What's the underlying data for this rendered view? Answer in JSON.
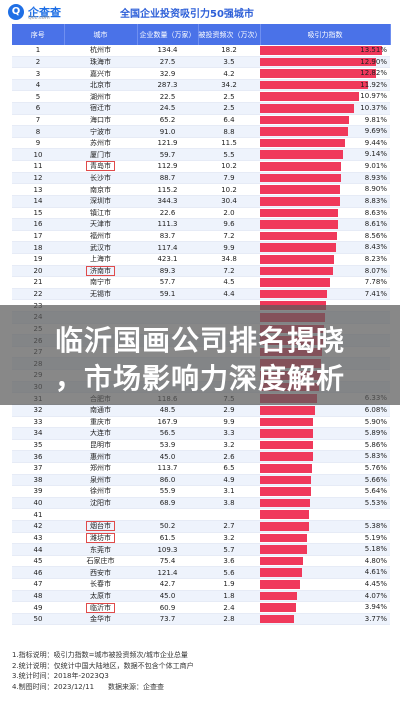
{
  "brand": {
    "name": "企查查",
    "sub": "Qcc.com"
  },
  "title": "全国企业投资吸引力50强城市",
  "columns": [
    "序号",
    "城市",
    "企业数量（万家）",
    "被投资频次（万次）",
    "吸引力指数"
  ],
  "rows": [
    {
      "rank": "1",
      "city": "杭州市",
      "count": "134.4",
      "freq": "18.2",
      "index": "13.51%",
      "value": 13.51,
      "boxed": false
    },
    {
      "rank": "2",
      "city": "珠海市",
      "count": "27.5",
      "freq": "3.5",
      "index": "12.90%",
      "value": 12.9,
      "boxed": false
    },
    {
      "rank": "3",
      "city": "嘉兴市",
      "count": "32.9",
      "freq": "4.2",
      "index": "12.82%",
      "value": 12.82,
      "boxed": false
    },
    {
      "rank": "4",
      "city": "北京市",
      "count": "287.3",
      "freq": "34.2",
      "index": "11.92%",
      "value": 11.92,
      "boxed": false
    },
    {
      "rank": "5",
      "city": "湖州市",
      "count": "22.5",
      "freq": "2.5",
      "index": "10.97%",
      "value": 10.97,
      "boxed": false
    },
    {
      "rank": "6",
      "city": "宿迁市",
      "count": "24.5",
      "freq": "2.5",
      "index": "10.37%",
      "value": 10.37,
      "boxed": false
    },
    {
      "rank": "7",
      "city": "海口市",
      "count": "65.2",
      "freq": "6.4",
      "index": "9.81%",
      "value": 9.81,
      "boxed": false
    },
    {
      "rank": "8",
      "city": "宁波市",
      "count": "91.0",
      "freq": "8.8",
      "index": "9.69%",
      "value": 9.69,
      "boxed": false
    },
    {
      "rank": "9",
      "city": "苏州市",
      "count": "121.9",
      "freq": "11.5",
      "index": "9.44%",
      "value": 9.44,
      "boxed": false
    },
    {
      "rank": "10",
      "city": "厦门市",
      "count": "59.7",
      "freq": "5.5",
      "index": "9.14%",
      "value": 9.14,
      "boxed": false
    },
    {
      "rank": "11",
      "city": "青岛市",
      "count": "112.9",
      "freq": "10.2",
      "index": "9.01%",
      "value": 9.01,
      "boxed": true
    },
    {
      "rank": "12",
      "city": "长沙市",
      "count": "88.7",
      "freq": "7.9",
      "index": "8.93%",
      "value": 8.93,
      "boxed": false
    },
    {
      "rank": "13",
      "city": "南京市",
      "count": "115.2",
      "freq": "10.2",
      "index": "8.90%",
      "value": 8.9,
      "boxed": false
    },
    {
      "rank": "14",
      "city": "深圳市",
      "count": "344.3",
      "freq": "30.4",
      "index": "8.83%",
      "value": 8.83,
      "boxed": false
    },
    {
      "rank": "15",
      "city": "镇江市",
      "count": "22.6",
      "freq": "2.0",
      "index": "8.63%",
      "value": 8.63,
      "boxed": false
    },
    {
      "rank": "16",
      "city": "天津市",
      "count": "111.3",
      "freq": "9.6",
      "index": "8.61%",
      "value": 8.61,
      "boxed": false
    },
    {
      "rank": "17",
      "city": "福州市",
      "count": "83.7",
      "freq": "7.2",
      "index": "8.56%",
      "value": 8.56,
      "boxed": false
    },
    {
      "rank": "18",
      "city": "武汉市",
      "count": "117.4",
      "freq": "9.9",
      "index": "8.43%",
      "value": 8.43,
      "boxed": false
    },
    {
      "rank": "19",
      "city": "上海市",
      "count": "423.1",
      "freq": "34.8",
      "index": "8.23%",
      "value": 8.23,
      "boxed": false
    },
    {
      "rank": "20",
      "city": "济南市",
      "count": "89.3",
      "freq": "7.2",
      "index": "8.07%",
      "value": 8.07,
      "boxed": true
    },
    {
      "rank": "21",
      "city": "南宁市",
      "count": "57.7",
      "freq": "4.5",
      "index": "7.78%",
      "value": 7.78,
      "boxed": false
    },
    {
      "rank": "22",
      "city": "无锡市",
      "count": "59.1",
      "freq": "4.4",
      "index": "7.41%",
      "value": 7.41,
      "boxed": false
    },
    {
      "rank": "23",
      "city": "",
      "count": "",
      "freq": "",
      "index": "",
      "value": 7.3,
      "boxed": false
    },
    {
      "rank": "24",
      "city": "",
      "count": "",
      "freq": "",
      "index": "",
      "value": 7.2,
      "boxed": false
    },
    {
      "rank": "25",
      "city": "",
      "count": "",
      "freq": "",
      "index": "",
      "value": 7.1,
      "boxed": false
    },
    {
      "rank": "26",
      "city": "",
      "count": "",
      "freq": "",
      "index": "",
      "value": 7.0,
      "boxed": false
    },
    {
      "rank": "27",
      "city": "",
      "count": "",
      "freq": "",
      "index": "",
      "value": 6.9,
      "boxed": false
    },
    {
      "rank": "28",
      "city": "",
      "count": "",
      "freq": "",
      "index": "",
      "value": 6.8,
      "boxed": false
    },
    {
      "rank": "29",
      "city": "",
      "count": "",
      "freq": "",
      "index": "",
      "value": 6.7,
      "boxed": false
    },
    {
      "rank": "30",
      "city": "",
      "count": "",
      "freq": "",
      "index": "",
      "value": 6.5,
      "boxed": false
    },
    {
      "rank": "31",
      "city": "合肥市",
      "count": "118.6",
      "freq": "7.5",
      "index": "6.33%",
      "value": 6.33,
      "boxed": false
    },
    {
      "rank": "32",
      "city": "南通市",
      "count": "48.5",
      "freq": "2.9",
      "index": "6.08%",
      "value": 6.08,
      "boxed": false
    },
    {
      "rank": "33",
      "city": "重庆市",
      "count": "167.9",
      "freq": "9.9",
      "index": "5.90%",
      "value": 5.9,
      "boxed": false
    },
    {
      "rank": "34",
      "city": "大连市",
      "count": "56.5",
      "freq": "3.3",
      "index": "5.89%",
      "value": 5.89,
      "boxed": false
    },
    {
      "rank": "35",
      "city": "昆明市",
      "count": "53.9",
      "freq": "3.2",
      "index": "5.86%",
      "value": 5.86,
      "boxed": false
    },
    {
      "rank": "36",
      "city": "惠州市",
      "count": "45.0",
      "freq": "2.6",
      "index": "5.83%",
      "value": 5.83,
      "boxed": false
    },
    {
      "rank": "37",
      "city": "郑州市",
      "count": "113.7",
      "freq": "6.5",
      "index": "5.76%",
      "value": 5.76,
      "boxed": false
    },
    {
      "rank": "38",
      "city": "泉州市",
      "count": "86.0",
      "freq": "4.9",
      "index": "5.66%",
      "value": 5.66,
      "boxed": false
    },
    {
      "rank": "39",
      "city": "徐州市",
      "count": "55.9",
      "freq": "3.1",
      "index": "5.64%",
      "value": 5.64,
      "boxed": false
    },
    {
      "rank": "40",
      "city": "沈阳市",
      "count": "68.9",
      "freq": "3.8",
      "index": "5.53%",
      "value": 5.53,
      "boxed": false
    },
    {
      "rank": "41",
      "city": "",
      "count": "",
      "freq": "",
      "index": "",
      "value": 5.45,
      "boxed": false
    },
    {
      "rank": "42",
      "city": "烟台市",
      "count": "50.2",
      "freq": "2.7",
      "index": "5.38%",
      "value": 5.38,
      "boxed": true
    },
    {
      "rank": "43",
      "city": "潍坊市",
      "count": "61.5",
      "freq": "3.2",
      "index": "5.19%",
      "value": 5.19,
      "boxed": true
    },
    {
      "rank": "44",
      "city": "东莞市",
      "count": "109.3",
      "freq": "5.7",
      "index": "5.18%",
      "value": 5.18,
      "boxed": false
    },
    {
      "rank": "45",
      "city": "石家庄市",
      "count": "75.4",
      "freq": "3.6",
      "index": "4.80%",
      "value": 4.8,
      "boxed": false
    },
    {
      "rank": "46",
      "city": "西安市",
      "count": "121.4",
      "freq": "5.6",
      "index": "4.61%",
      "value": 4.61,
      "boxed": false
    },
    {
      "rank": "47",
      "city": "长春市",
      "count": "42.7",
      "freq": "1.9",
      "index": "4.45%",
      "value": 4.45,
      "boxed": false
    },
    {
      "rank": "48",
      "city": "太原市",
      "count": "45.0",
      "freq": "1.8",
      "index": "4.07%",
      "value": 4.07,
      "boxed": false
    },
    {
      "rank": "49",
      "city": "临沂市",
      "count": "60.9",
      "freq": "2.4",
      "index": "3.94%",
      "value": 3.94,
      "boxed": true
    },
    {
      "rank": "50",
      "city": "金华市",
      "count": "73.7",
      "freq": "2.8",
      "index": "3.77%",
      "value": 3.77,
      "boxed": false
    }
  ],
  "bar_max": 13.51,
  "bar_color": "#f0395b",
  "overlay": {
    "line1": "临沂国画公司排名揭晓",
    "line2": "，市场影响力深度解析"
  },
  "notes": [
    "1.指标说明：吸引力指数=城市被投资频次/城市企业总量",
    "2.统计说明：仅统计中国大陆地区，数据不包含个体工商户",
    "3.统计时间：2018年-2023Q3",
    "4.制图时间：2023/12/11　　数据来源：企查查"
  ]
}
